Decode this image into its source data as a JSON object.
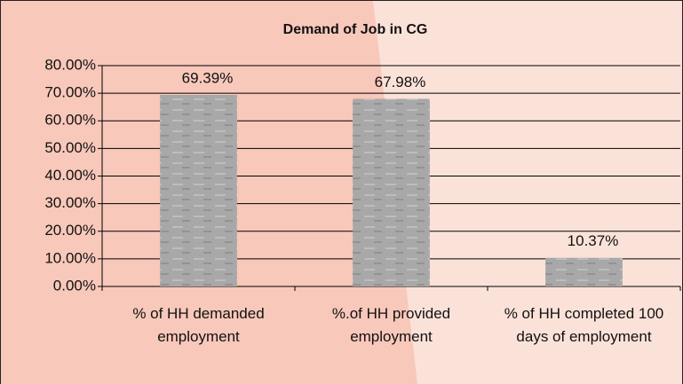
{
  "chart_data": {
    "type": "bar",
    "title": "Demand of Job in CG",
    "categories": [
      "% of HH demanded employment",
      "%.of HH provided employment",
      "% of HH completed 100 days of employment"
    ],
    "values": [
      69.39,
      67.98,
      10.37
    ],
    "value_labels": [
      "69.39%",
      "67.98%",
      "10.37%"
    ],
    "color": "#a8a8a8",
    "ylim": [
      0,
      80
    ],
    "yticks": [
      {
        "value": 0,
        "label": "0.00%"
      },
      {
        "value": 10,
        "label": "10.00%"
      },
      {
        "value": 20,
        "label": "20.00%"
      },
      {
        "value": 30,
        "label": "30.00%"
      },
      {
        "value": 40,
        "label": "40.00%"
      },
      {
        "value": 50,
        "label": "50.00%"
      },
      {
        "value": 60,
        "label": "60.00%"
      },
      {
        "value": 70,
        "label": "70.00%"
      },
      {
        "value": 80,
        "label": "80.00%"
      }
    ],
    "grid": true
  }
}
